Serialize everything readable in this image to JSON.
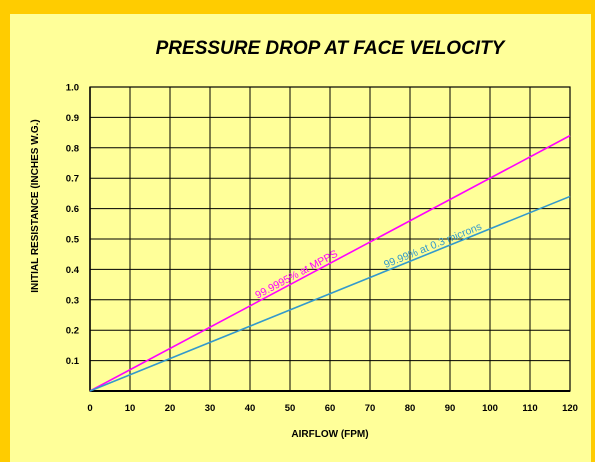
{
  "chart_data": {
    "type": "line",
    "title": "PRESSURE DROP AT FACE VELOCITY",
    "xlabel": "AIRFLOW (FPM)",
    "ylabel": "INITIAL RESISTANCE  (INCHES W.G.)",
    "xlim": [
      0,
      120
    ],
    "ylim": [
      0,
      1.0
    ],
    "x_ticks": [
      "0",
      "10",
      "20",
      "30",
      "40",
      "50",
      "60",
      "70",
      "80",
      "90",
      "100",
      "110",
      "120"
    ],
    "y_ticks": [
      "0.1",
      "0.2",
      "0.3",
      "0.4",
      "0.5",
      "0.6",
      "0.7",
      "0.8",
      "0.9",
      "1.0"
    ],
    "grid": true,
    "series": [
      {
        "name": "99.9995% at MPPS",
        "color": "#FF00FF",
        "x": [
          0,
          120
        ],
        "y": [
          0,
          0.84
        ]
      },
      {
        "name": "99.99% at 0.3 microns",
        "color": "#3399CC",
        "x": [
          0,
          120
        ],
        "y": [
          0,
          0.64
        ]
      }
    ],
    "background": "#FFFF99",
    "frame_color": "#FFCC00"
  }
}
